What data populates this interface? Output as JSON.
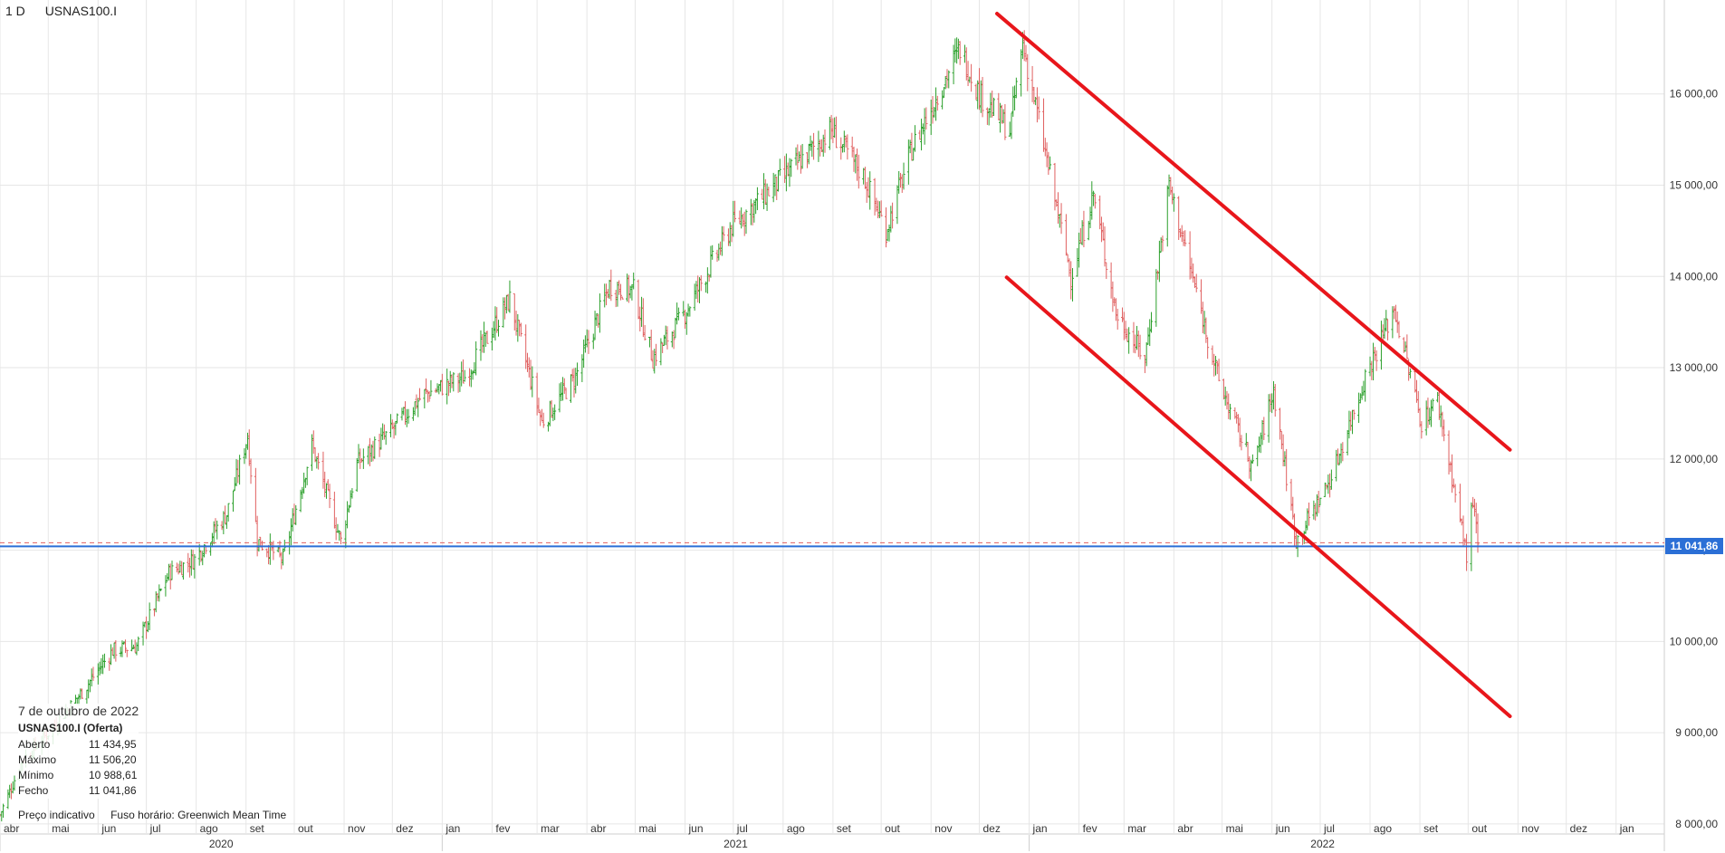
{
  "header": {
    "timeframe": "1 D",
    "symbol": "USNAS100.I"
  },
  "info_panel": {
    "date": "7 de outubro de 2022",
    "instrument": "USNAS100.I (Oferta)",
    "rows": [
      {
        "label": "Aberto",
        "value": "11 434,95"
      },
      {
        "label": "Máximo",
        "value": "11 506,20"
      },
      {
        "label": "Mínimo",
        "value": "10 988,61"
      },
      {
        "label": "Fecho",
        "value": "11 041,86"
      }
    ]
  },
  "footer": {
    "price_type": "Preço indicativo",
    "timezone": "Fuso horário: Greenwich Mean Time"
  },
  "current_price_label": "11 041,86",
  "colors": {
    "up": "#2ca02c",
    "down": "#e06060",
    "trendline": "#e8161b",
    "price_line": "#2b6fd6",
    "grid": "#e6e6e6"
  },
  "chart_data": {
    "type": "ohlc",
    "y_axis": {
      "range": [
        7900,
        16950
      ],
      "ticks": [
        8000,
        9000,
        10000,
        11000,
        12000,
        13000,
        14000,
        15000,
        16000
      ],
      "tick_labels": [
        "8 000,00",
        "9 000,00",
        "10 000,00",
        "11 000,00",
        "12 000,00",
        "13 000,00",
        "14 000,00",
        "15 000,00",
        "16 000,00"
      ]
    },
    "x_axis": {
      "range": [
        "2020-04-01",
        "2023-01-31"
      ],
      "months": [
        {
          "label": "abr",
          "date": "2020-04-01"
        },
        {
          "label": "mai",
          "date": "2020-05-01"
        },
        {
          "label": "jun",
          "date": "2020-06-01"
        },
        {
          "label": "jul",
          "date": "2020-07-01"
        },
        {
          "label": "ago",
          "date": "2020-08-01"
        },
        {
          "label": "set",
          "date": "2020-09-01"
        },
        {
          "label": "out",
          "date": "2020-10-01"
        },
        {
          "label": "nov",
          "date": "2020-11-01"
        },
        {
          "label": "dez",
          "date": "2020-12-01"
        },
        {
          "label": "jan",
          "date": "2021-01-01"
        },
        {
          "label": "fev",
          "date": "2021-02-01"
        },
        {
          "label": "mar",
          "date": "2021-03-01"
        },
        {
          "label": "abr",
          "date": "2021-04-01"
        },
        {
          "label": "mai",
          "date": "2021-05-01"
        },
        {
          "label": "jun",
          "date": "2021-06-01"
        },
        {
          "label": "jul",
          "date": "2021-07-01"
        },
        {
          "label": "ago",
          "date": "2021-08-01"
        },
        {
          "label": "set",
          "date": "2021-09-01"
        },
        {
          "label": "out",
          "date": "2021-10-01"
        },
        {
          "label": "nov",
          "date": "2021-11-01"
        },
        {
          "label": "dez",
          "date": "2021-12-01"
        },
        {
          "label": "jan",
          "date": "2022-01-01"
        },
        {
          "label": "fev",
          "date": "2022-02-01"
        },
        {
          "label": "mar",
          "date": "2022-03-01"
        },
        {
          "label": "abr",
          "date": "2022-04-01"
        },
        {
          "label": "mai",
          "date": "2022-05-01"
        },
        {
          "label": "jun",
          "date": "2022-06-01"
        },
        {
          "label": "jul",
          "date": "2022-07-01"
        },
        {
          "label": "ago",
          "date": "2022-08-01"
        },
        {
          "label": "set",
          "date": "2022-09-01"
        },
        {
          "label": "out",
          "date": "2022-10-01"
        },
        {
          "label": "nov",
          "date": "2022-11-01"
        },
        {
          "label": "dez",
          "date": "2022-12-01"
        },
        {
          "label": "jan",
          "date": "2023-01-01"
        }
      ],
      "years": [
        {
          "label": "2020",
          "date": "2020-04-01",
          "end": "2021-01-01"
        },
        {
          "label": "2021",
          "date": "2021-01-01",
          "end": "2022-01-01"
        },
        {
          "label": "2022",
          "date": "2022-01-01",
          "end": "2023-01-01"
        }
      ]
    },
    "close_path": [
      [
        "2020-04-01",
        8100
      ],
      [
        "2020-04-15",
        8700
      ],
      [
        "2020-05-01",
        9000
      ],
      [
        "2020-05-20",
        9400
      ],
      [
        "2020-06-10",
        9900
      ],
      [
        "2020-06-25",
        9950
      ],
      [
        "2020-07-15",
        10750
      ],
      [
        "2020-07-31",
        10900
      ],
      [
        "2020-08-20",
        11400
      ],
      [
        "2020-09-02",
        12250
      ],
      [
        "2020-09-08",
        11100
      ],
      [
        "2020-09-24",
        10900
      ],
      [
        "2020-10-12",
        12150
      ],
      [
        "2020-10-30",
        11100
      ],
      [
        "2020-11-09",
        11950
      ],
      [
        "2020-11-30",
        12300
      ],
      [
        "2020-12-20",
        12700
      ],
      [
        "2021-01-15",
        12900
      ],
      [
        "2021-02-12",
        13750
      ],
      [
        "2021-03-04",
        12400
      ],
      [
        "2021-03-25",
        12900
      ],
      [
        "2021-04-15",
        13900
      ],
      [
        "2021-04-30",
        13850
      ],
      [
        "2021-05-12",
        13100
      ],
      [
        "2021-06-01",
        13600
      ],
      [
        "2021-06-30",
        14550
      ],
      [
        "2021-07-30",
        15050
      ],
      [
        "2021-08-31",
        15600
      ],
      [
        "2021-09-20",
        15100
      ],
      [
        "2021-10-04",
        14500
      ],
      [
        "2021-10-20",
        15400
      ],
      [
        "2021-11-19",
        16500
      ],
      [
        "2021-12-01",
        16000
      ],
      [
        "2021-12-20",
        15600
      ],
      [
        "2021-12-28",
        16550
      ],
      [
        "2022-01-27",
        14000
      ],
      [
        "2022-02-10",
        14900
      ],
      [
        "2022-02-24",
        13600
      ],
      [
        "2022-03-14",
        13100
      ],
      [
        "2022-03-29",
        15000
      ],
      [
        "2022-04-29",
        12850
      ],
      [
        "2022-05-20",
        11900
      ],
      [
        "2022-06-02",
        12750
      ],
      [
        "2022-06-16",
        11100
      ],
      [
        "2022-07-08",
        11800
      ],
      [
        "2022-07-29",
        12900
      ],
      [
        "2022-08-16",
        13650
      ],
      [
        "2022-09-02",
        12400
      ],
      [
        "2022-09-12",
        12650
      ],
      [
        "2022-09-30",
        10950
      ],
      [
        "2022-10-04",
        11550
      ],
      [
        "2022-10-07",
        11041.86
      ]
    ],
    "horizontal_levels": [
      {
        "name": "price-line",
        "value": 11041.86
      }
    ],
    "trendlines": [
      {
        "name": "upper-channel-line",
        "from": [
          "2021-12-12",
          16880
        ],
        "to": [
          "2022-10-27",
          12100
        ]
      },
      {
        "name": "lower-channel-line",
        "from": [
          "2021-12-18",
          13990
        ],
        "to": [
          "2022-10-27",
          9180
        ]
      }
    ]
  }
}
